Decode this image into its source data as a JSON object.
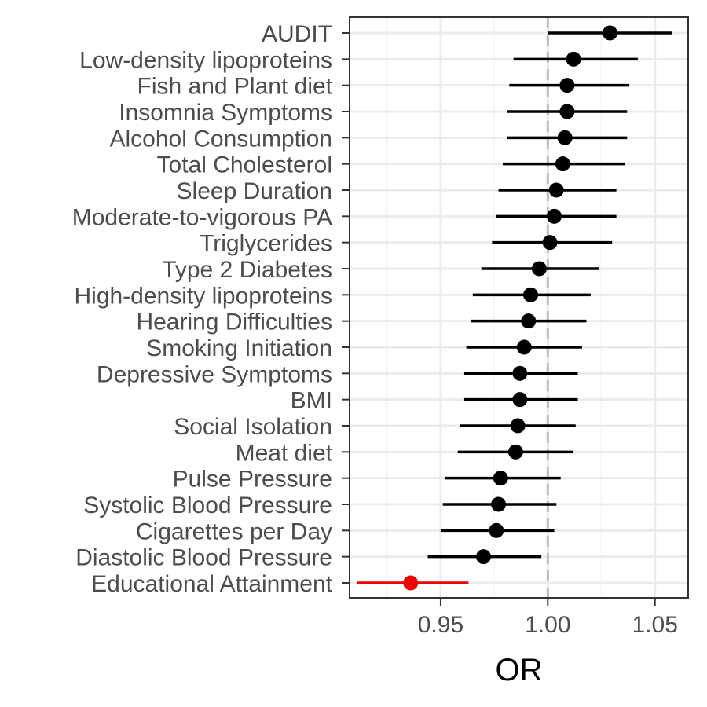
{
  "chart_data": {
    "type": "forest",
    "xlabel": "OR",
    "xlim": [
      0.9075,
      1.0655
    ],
    "x_ticks": [
      0.95,
      1.0,
      1.05
    ],
    "x_tick_labels": [
      "0.95",
      "1.00",
      "1.05"
    ],
    "reference_line": 1.0,
    "grid": true,
    "categories": [
      "AUDIT",
      "Low-density lipoproteins",
      "Fish and Plant diet",
      "Insomnia Symptoms",
      "Alcohol Consumption",
      "Total Cholesterol",
      "Sleep Duration",
      "Moderate-to-vigorous PA",
      "Triglycerides",
      "Type 2 Diabetes",
      "High-density lipoproteins",
      "Hearing Difficulties",
      "Smoking Initiation",
      "Depressive Symptoms",
      "BMI",
      "Social Isolation",
      "Meat diet",
      "Pulse Pressure",
      "Systolic Blood Pressure",
      "Cigarettes per Day",
      "Diastolic Blood Pressure",
      "Educational Attainment"
    ],
    "estimates": [
      1.029,
      1.012,
      1.009,
      1.009,
      1.008,
      1.007,
      1.004,
      1.003,
      1.001,
      0.996,
      0.992,
      0.991,
      0.989,
      0.987,
      0.987,
      0.986,
      0.985,
      0.978,
      0.977,
      0.976,
      0.97,
      0.936
    ],
    "ci_lower": [
      1.0,
      0.984,
      0.982,
      0.981,
      0.981,
      0.979,
      0.977,
      0.976,
      0.974,
      0.969,
      0.965,
      0.964,
      0.962,
      0.961,
      0.961,
      0.959,
      0.958,
      0.952,
      0.951,
      0.95,
      0.944,
      0.911
    ],
    "ci_upper": [
      1.058,
      1.042,
      1.038,
      1.037,
      1.037,
      1.036,
      1.032,
      1.032,
      1.03,
      1.024,
      1.02,
      1.018,
      1.016,
      1.014,
      1.014,
      1.013,
      1.012,
      1.006,
      1.004,
      1.003,
      0.997,
      0.963
    ],
    "highlighted": [
      "Educational Attainment"
    ],
    "colors": {
      "default_point": "#000000",
      "highlight_point": "#ee0000",
      "reference_line": "#bebebe",
      "grid_major": "#ebebeb",
      "grid_minor": "#f5f5f5",
      "panel_border": "#333333",
      "tick_label": "#4d4d4d"
    }
  }
}
